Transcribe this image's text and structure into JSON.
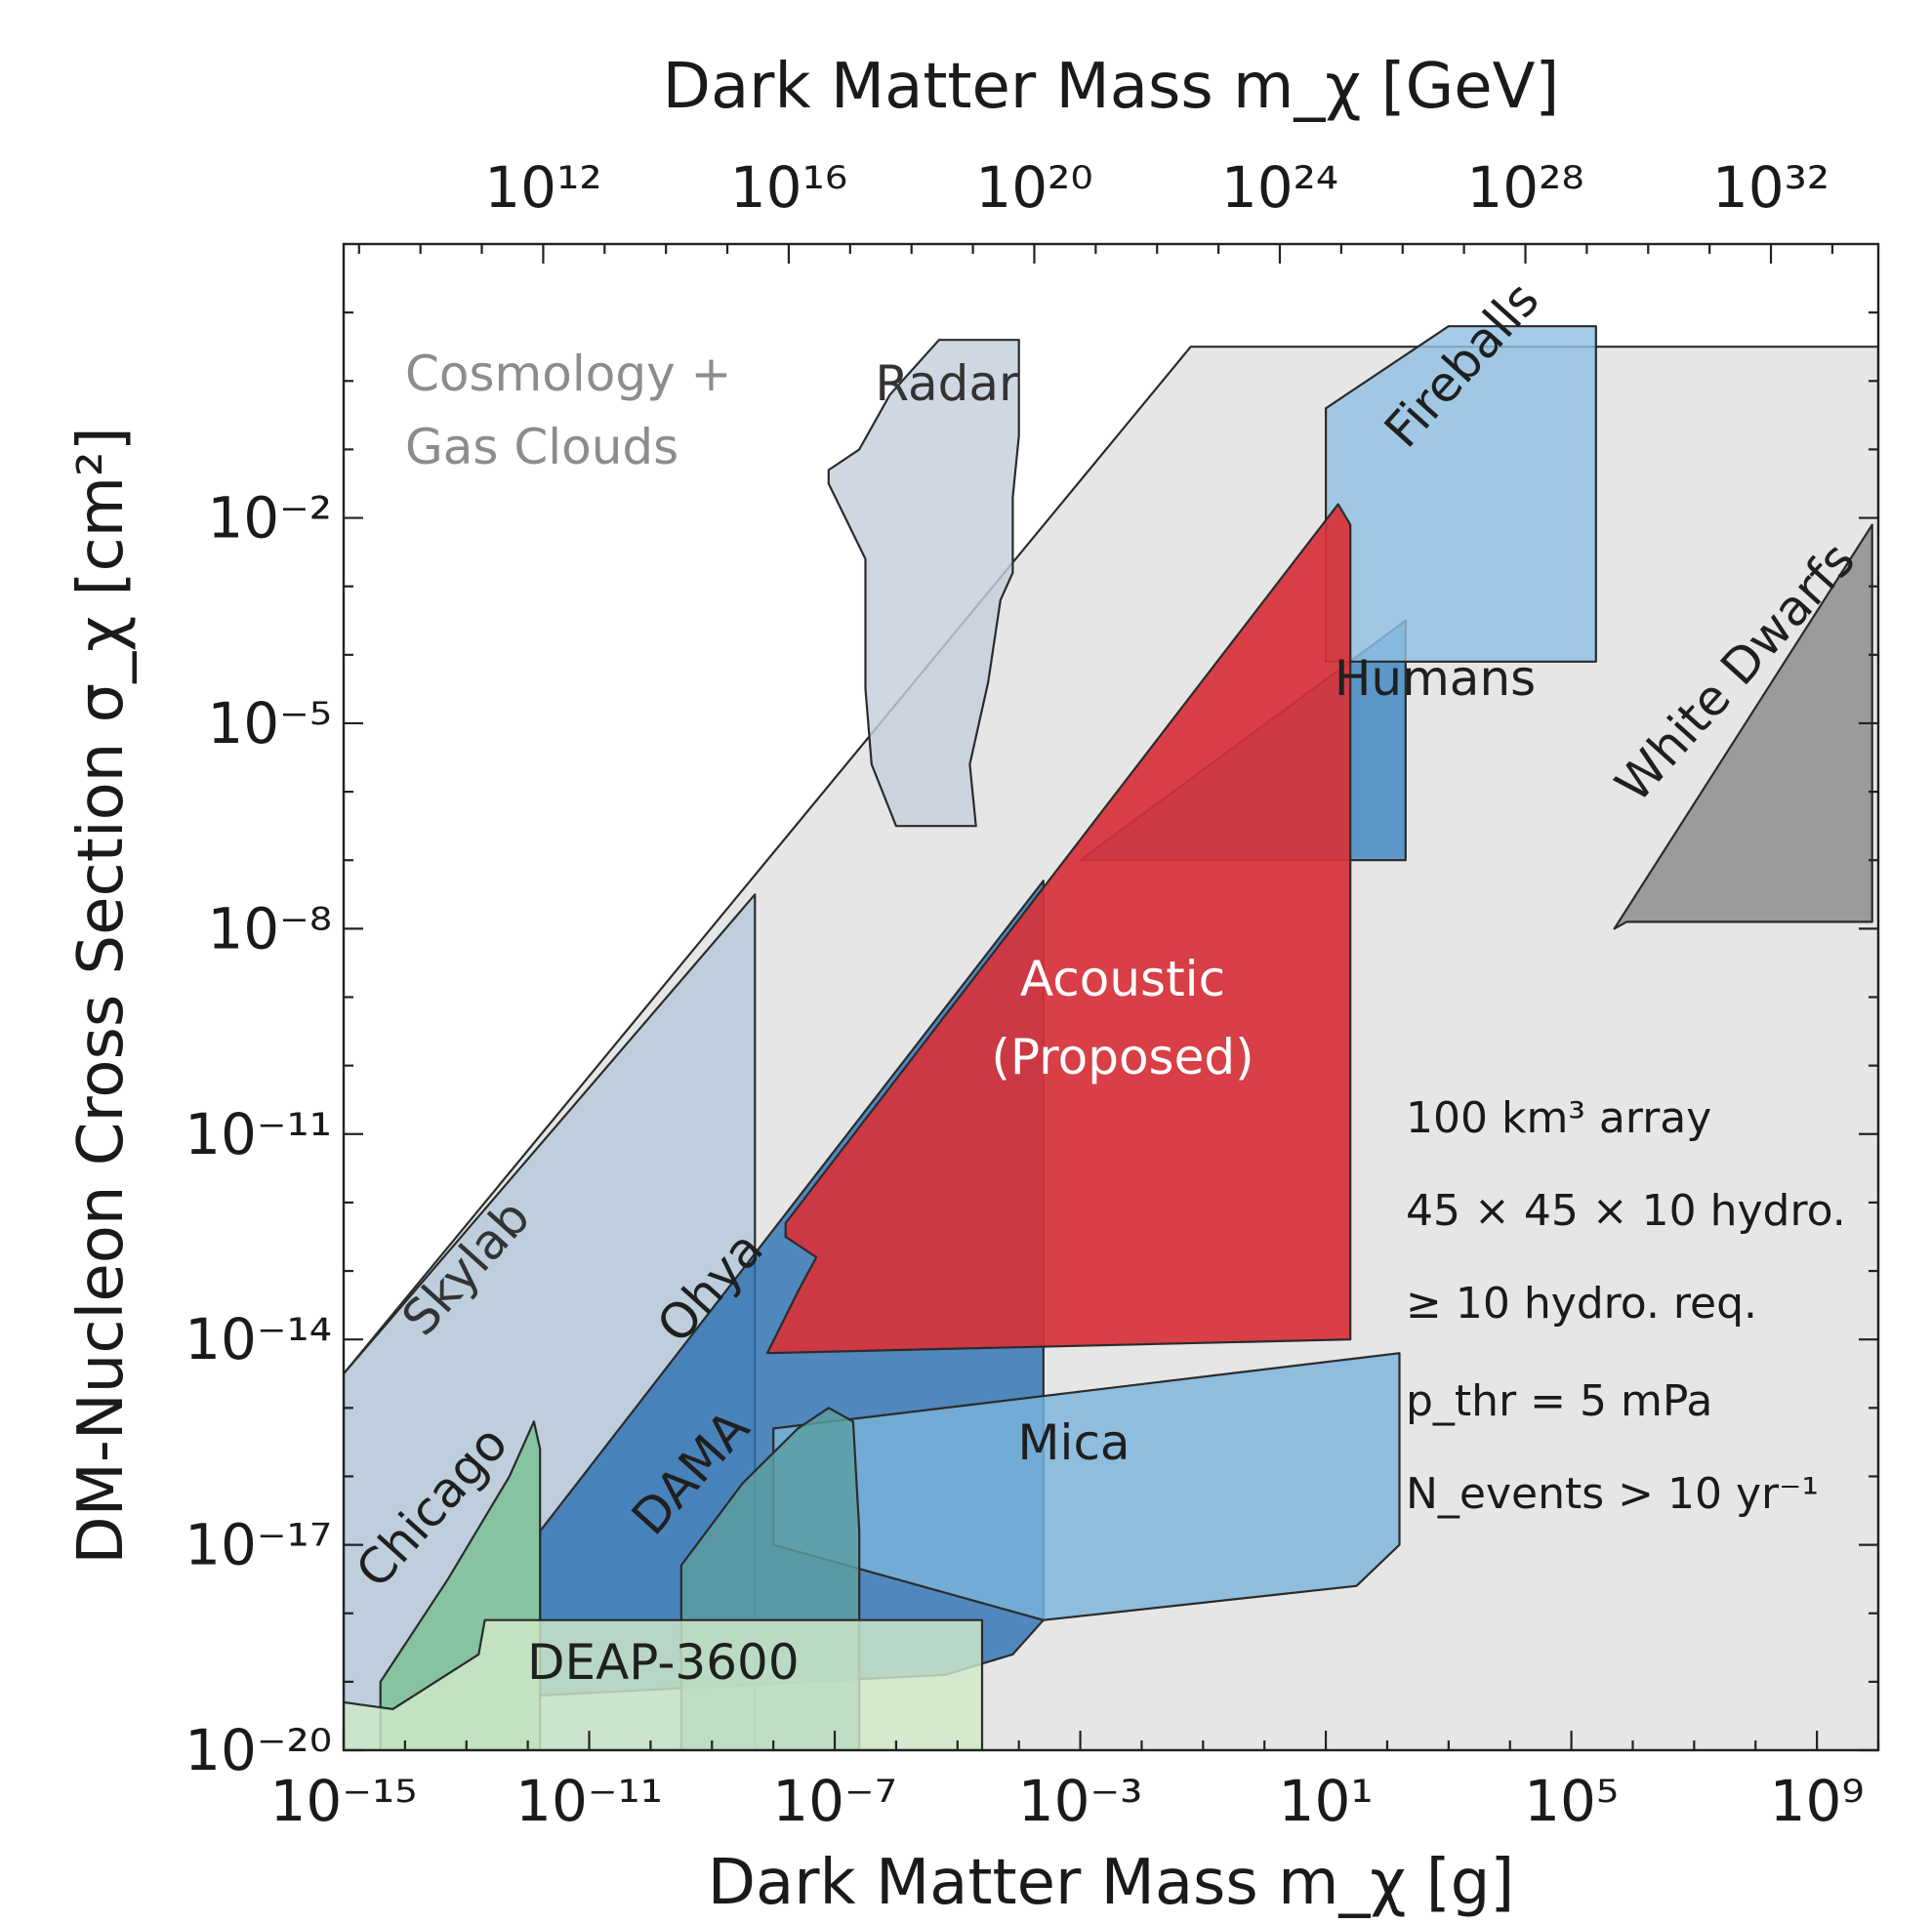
{
  "chart_data": {
    "type": "area",
    "title": "",
    "xlabel_bottom": "Dark Matter Mass m_χ [g]",
    "xlabel_top": "Dark Matter Mass m_χ [GeV]",
    "ylabel": "DM-Nucleon Cross Section σ_χ [cm²]",
    "x_scale": "log",
    "y_scale": "log",
    "xlim_log10_g": [
      -15,
      10
    ],
    "ylim_log10_cm2": [
      -20,
      0
    ],
    "x_ticks_bottom": [
      {
        "exp": -15,
        "label": "10⁻¹⁵"
      },
      {
        "exp": -11,
        "label": "10⁻¹¹"
      },
      {
        "exp": -7,
        "label": "10⁻⁷"
      },
      {
        "exp": -3,
        "label": "10⁻³"
      },
      {
        "exp": 1,
        "label": "10¹"
      },
      {
        "exp": 5,
        "label": "10⁵"
      },
      {
        "exp": 9,
        "label": "10⁹"
      }
    ],
    "x_ticks_top": [
      {
        "exp": 12,
        "label": "10¹²"
      },
      {
        "exp": 16,
        "label": "10¹⁶"
      },
      {
        "exp": 20,
        "label": "10²⁰"
      },
      {
        "exp": 24,
        "label": "10²⁴"
      },
      {
        "exp": 28,
        "label": "10²⁸"
      },
      {
        "exp": 32,
        "label": "10³²"
      }
    ],
    "y_ticks": [
      {
        "exp": -20,
        "label": "10⁻²⁰"
      },
      {
        "exp": -17,
        "label": "10⁻¹⁷"
      },
      {
        "exp": -14,
        "label": "10⁻¹⁴"
      },
      {
        "exp": -11,
        "label": "10⁻¹¹"
      },
      {
        "exp": -8,
        "label": "10⁻⁸"
      },
      {
        "exp": -5,
        "label": "10⁻⁵"
      },
      {
        "exp": -2,
        "label": "10⁻²"
      }
    ],
    "series": [
      {
        "name": "Cosmology + Gas Clouds",
        "label_lines": [
          "Cosmology +",
          "Gas Clouds"
        ],
        "color": "#e6e6e6",
        "text_color": "#8c8c8c",
        "polygon": [
          [
            -15,
            -14.5
          ],
          [
            -1.2,
            0.5
          ],
          [
            10,
            0.5
          ],
          [
            10,
            -20
          ],
          [
            -15,
            -20
          ]
        ]
      },
      {
        "name": "Radar",
        "label_lines": [
          "Radar"
        ],
        "color": "#c4cfdc",
        "text_color": "#333333",
        "polygon": [
          [
            -7.1,
            -1.3
          ],
          [
            -6.6,
            -1.0
          ],
          [
            -6.1,
            -0.2
          ],
          [
            -5.3,
            0.6
          ],
          [
            -4,
            0.6
          ],
          [
            -4,
            -0.8
          ],
          [
            -4.1,
            -1.7
          ],
          [
            -4.1,
            -2.8
          ],
          [
            -4.3,
            -3.2
          ],
          [
            -4.5,
            -4.4
          ],
          [
            -4.8,
            -5.6
          ],
          [
            -4.7,
            -6.5
          ],
          [
            -6.0,
            -6.5
          ],
          [
            -6.4,
            -5.6
          ],
          [
            -6.5,
            -4.5
          ],
          [
            -6.5,
            -2.6
          ],
          [
            -7.1,
            -1.5
          ]
        ]
      },
      {
        "name": "Skylab",
        "label_lines": [
          "Skylab"
        ],
        "color": "#b5c8d9",
        "text_color": "#333333",
        "polygon": [
          [
            -15,
            -14.5
          ],
          [
            -8.3,
            -7.5
          ],
          [
            -8.3,
            -20
          ],
          [
            -15,
            -20
          ]
        ]
      },
      {
        "name": "Ohya",
        "label_lines": [
          "Ohya"
        ],
        "color": "#2e72b3",
        "text_color": "#1f1f1f",
        "polygon": [
          [
            -11.8,
            -16.8
          ],
          [
            -3.6,
            -7.3
          ],
          [
            -3.6,
            -18.1
          ],
          [
            -4.1,
            -18.6
          ],
          [
            -5.2,
            -18.9
          ],
          [
            -11.8,
            -19.2
          ]
        ]
      },
      {
        "name": "Mica",
        "label_lines": [
          "Mica"
        ],
        "color": "#7ab3da",
        "text_color": "#1f1f1f",
        "polygon": [
          [
            -8.0,
            -15.3
          ],
          [
            2.2,
            -14.2
          ],
          [
            2.2,
            -17.0
          ],
          [
            1.5,
            -17.6
          ],
          [
            -3.6,
            -18.1
          ],
          [
            -8.0,
            -17.0
          ]
        ]
      },
      {
        "name": "DAMA",
        "label_lines": [
          "DAMA"
        ],
        "color": "#5b9fa0",
        "text_color": "#1f1f1f",
        "polygon": [
          [
            -9.5,
            -17.3
          ],
          [
            -8.5,
            -16.1
          ],
          [
            -7.6,
            -15.3
          ],
          [
            -7.1,
            -15.0
          ],
          [
            -6.7,
            -15.2
          ],
          [
            -6.6,
            -16.8
          ],
          [
            -6.6,
            -20
          ],
          [
            -9.5,
            -20
          ]
        ]
      },
      {
        "name": "Chicago",
        "label_lines": [
          "Chicago"
        ],
        "color": "#7bbf94",
        "text_color": "#1f1f1f",
        "polygon": [
          [
            -14.4,
            -19.0
          ],
          [
            -13.3,
            -17.5
          ],
          [
            -12.3,
            -16.0
          ],
          [
            -11.9,
            -15.2
          ],
          [
            -11.8,
            -15.6
          ],
          [
            -11.8,
            -20
          ],
          [
            -14.4,
            -20
          ]
        ]
      },
      {
        "name": "DEAP-3600",
        "label_lines": [
          "DEAP-3600"
        ],
        "color": "#cfe9c8",
        "text_color": "#1f1f1f",
        "polygon": [
          [
            -15,
            -19.3
          ],
          [
            -14.2,
            -19.4
          ],
          [
            -12.8,
            -18.6
          ],
          [
            -12.7,
            -18.1
          ],
          [
            -4.6,
            -18.1
          ],
          [
            -4.6,
            -20
          ],
          [
            -15,
            -20
          ]
        ]
      },
      {
        "name": "Humans",
        "label_lines": [
          "Humans"
        ],
        "color": "#3e85c2",
        "text_color": "#1f1f1f",
        "polygon": [
          [
            -3,
            -7.0
          ],
          [
            2.3,
            -3.5
          ],
          [
            2.3,
            -7.0
          ]
        ]
      },
      {
        "name": "Fireballs",
        "label_lines": [
          "Fireballs"
        ],
        "color": "#90c1e3",
        "text_color": "#1f1f1f",
        "polygon": [
          [
            1,
            -0.4
          ],
          [
            3.0,
            0.8
          ],
          [
            5.4,
            0.8
          ],
          [
            5.4,
            -4.1
          ],
          [
            1,
            -4.1
          ]
        ]
      },
      {
        "name": "White Dwarfs",
        "label_lines": [
          "White Dwarfs"
        ],
        "color": "#8a8a8a",
        "text_color": "#1f1f1f",
        "polygon": [
          [
            5.7,
            -8.0
          ],
          [
            9.9,
            -2.1
          ],
          [
            9.9,
            -7.9
          ],
          [
            5.9,
            -7.9
          ]
        ]
      },
      {
        "name": "Acoustic (Proposed)",
        "label_lines": [
          "Acoustic",
          "(Proposed)"
        ],
        "color": "#d73138",
        "text_color": "#ffffff",
        "polygon": [
          [
            -7.8,
            -12.3
          ],
          [
            1.2,
            -1.8
          ],
          [
            1.4,
            -2.1
          ],
          [
            1.4,
            -14.0
          ],
          [
            -8.1,
            -14.2
          ],
          [
            -7.6,
            -13.3
          ],
          [
            -7.3,
            -12.8
          ],
          [
            -7.8,
            -12.5
          ]
        ]
      }
    ],
    "annotations": [
      "100 km³ array",
      "45 × 45 × 10 hydro.",
      "≥ 10 hydro. req.",
      "p_thr = 5 mPa",
      "N_events > 10 yr⁻¹"
    ]
  }
}
